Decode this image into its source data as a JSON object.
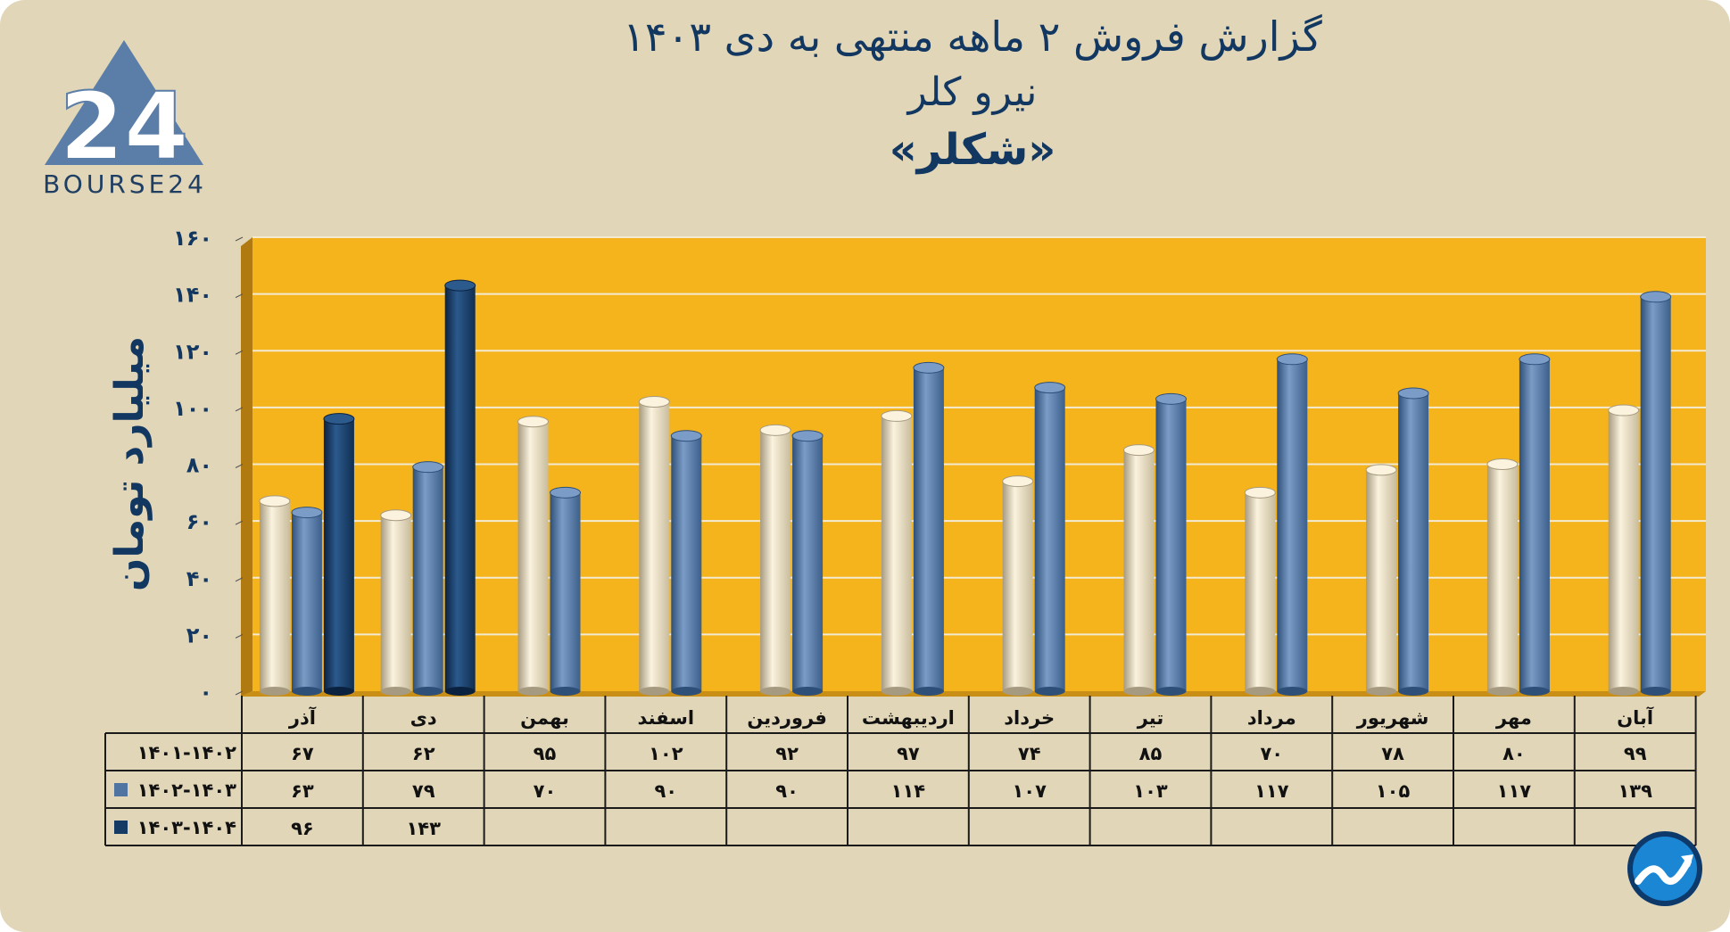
{
  "title": {
    "line1": "گزارش  فروش ۲ ماهه منتهی به دی ۱۴۰۳",
    "line2": "نیرو کلر",
    "line3": "«شکلر»"
  },
  "logo": {
    "text": "BOURSE24",
    "mark": "24",
    "icon": "bourse24-logo-icon"
  },
  "corner_icon": "trend-arrow-badge-icon",
  "colors": {
    "background": "#e1d6b8",
    "plot_background": "#f5b31c",
    "series_1401_1402": "#e8dcbf",
    "series_1402_1403": "#4f74a2",
    "series_1403_1404": "#153a63",
    "text_dark": "#123760"
  },
  "chart_data": {
    "type": "bar",
    "title": "گزارش  فروش ۲ ماهه منتهی به دی ۱۴۰۳",
    "ylabel": "میلیارد تومان",
    "ylim": [
      0,
      160
    ],
    "yticks": [
      "۰",
      "۲۰",
      "۴۰",
      "۶۰",
      "۸۰",
      "۱۰۰",
      "۱۲۰",
      "۱۴۰",
      "۱۶۰"
    ],
    "grid": true,
    "categories": [
      "آذر",
      "دی",
      "بهمن",
      "اسفند",
      "فروردین",
      "اردیبهشت",
      "خرداد",
      "تیر",
      "مرداد",
      "شهریور",
      "مهر",
      "آبان"
    ],
    "series": [
      {
        "name": "۱۴۰۱-۱۴۰۲",
        "values": [
          67,
          62,
          95,
          102,
          92,
          97,
          74,
          85,
          70,
          78,
          80,
          99
        ],
        "labels": [
          "۶۷",
          "۶۲",
          "۹۵",
          "۱۰۲",
          "۹۲",
          "۹۷",
          "۷۴",
          "۸۵",
          "۷۰",
          "۷۸",
          "۸۰",
          "۹۹"
        ]
      },
      {
        "name": "۱۴۰۲-۱۴۰۳",
        "values": [
          63,
          79,
          70,
          90,
          90,
          114,
          107,
          103,
          117,
          105,
          117,
          139
        ],
        "labels": [
          "۶۳",
          "۷۹",
          "۷۰",
          "۹۰",
          "۹۰",
          "۱۱۴",
          "۱۰۷",
          "۱۰۳",
          "۱۱۷",
          "۱۰۵",
          "۱۱۷",
          "۱۳۹"
        ]
      },
      {
        "name": "۱۴۰۳-۱۴۰۴",
        "values": [
          96,
          143,
          null,
          null,
          null,
          null,
          null,
          null,
          null,
          null,
          null,
          null
        ],
        "labels": [
          "۹۶",
          "۱۴۳",
          "",
          "",
          "",
          "",
          "",
          "",
          "",
          "",
          "",
          ""
        ]
      }
    ],
    "legend": "table-left"
  }
}
